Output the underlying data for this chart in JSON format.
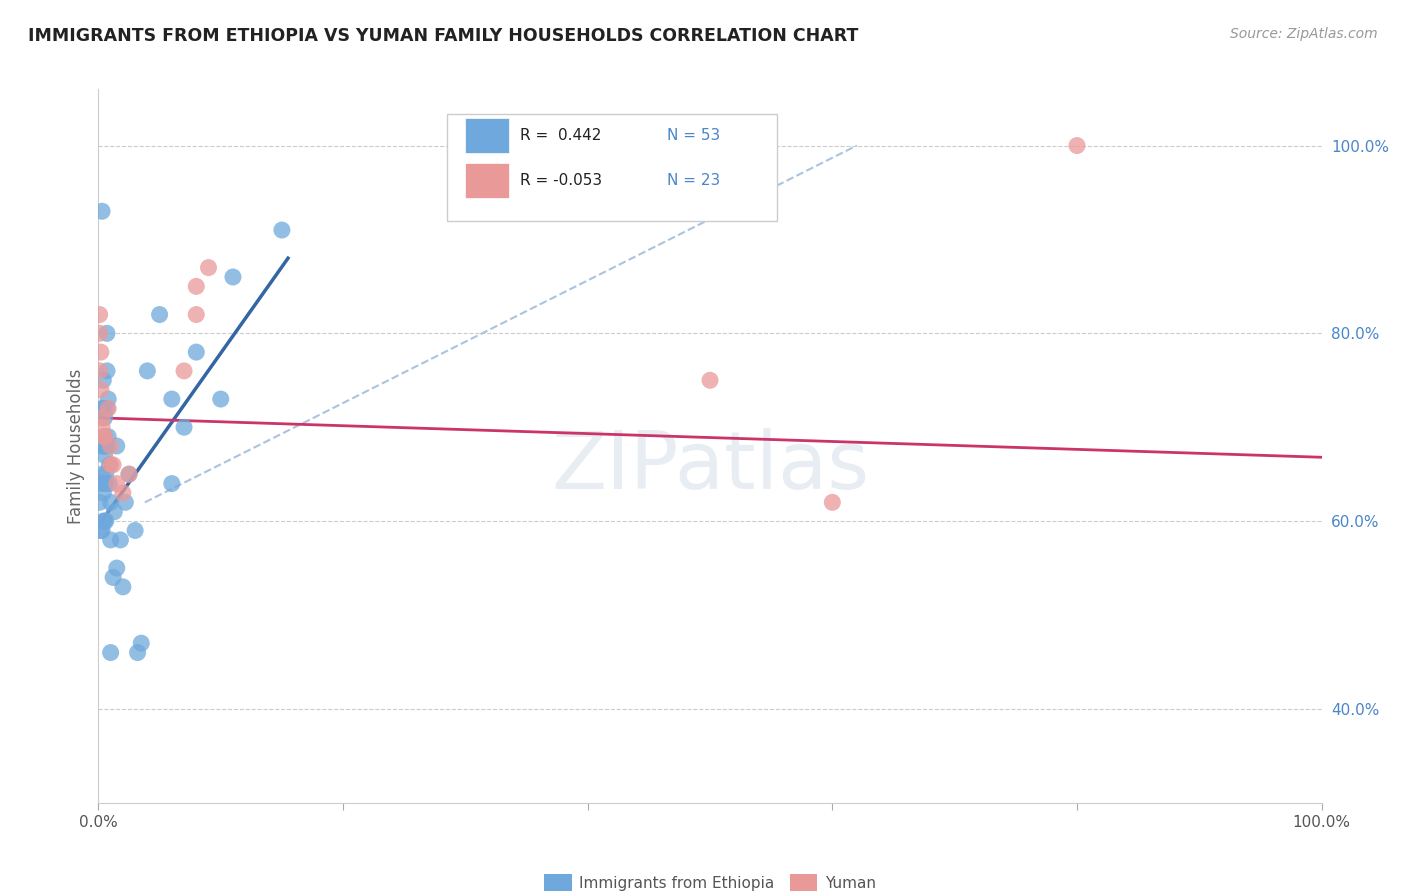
{
  "title": "IMMIGRANTS FROM ETHIOPIA VS YUMAN FAMILY HOUSEHOLDS CORRELATION CHART",
  "source": "Source: ZipAtlas.com",
  "ylabel": "Family Households",
  "xlim": [
    0.0,
    1.0
  ],
  "ylim": [
    0.3,
    1.06
  ],
  "x_ticks": [
    0.0,
    0.2,
    0.4,
    0.6,
    0.8,
    1.0
  ],
  "x_tick_labels": [
    "0.0%",
    "",
    "",
    "",
    "",
    "100.0%"
  ],
  "y_ticks_right": [
    0.4,
    0.6,
    0.8,
    1.0
  ],
  "y_tick_labels_right": [
    "40.0%",
    "60.0%",
    "80.0%",
    "100.0%"
  ],
  "blue_color": "#6fa8dc",
  "pink_color": "#ea9999",
  "blue_line_color": "#3465a4",
  "pink_line_color": "#cc3366",
  "dashed_line_color": "#aac4e0",
  "blue_scatter": [
    [
      0.001,
      0.62
    ],
    [
      0.002,
      0.59
    ],
    [
      0.002,
      0.64
    ],
    [
      0.003,
      0.65
    ],
    [
      0.003,
      0.68
    ],
    [
      0.003,
      0.72
    ],
    [
      0.003,
      0.59
    ],
    [
      0.004,
      0.63
    ],
    [
      0.004,
      0.6
    ],
    [
      0.004,
      0.68
    ],
    [
      0.004,
      0.72
    ],
    [
      0.004,
      0.75
    ],
    [
      0.005,
      0.64
    ],
    [
      0.005,
      0.6
    ],
    [
      0.005,
      0.69
    ],
    [
      0.005,
      0.67
    ],
    [
      0.005,
      0.71
    ],
    [
      0.006,
      0.68
    ],
    [
      0.006,
      0.65
    ],
    [
      0.006,
      0.64
    ],
    [
      0.006,
      0.6
    ],
    [
      0.007,
      0.68
    ],
    [
      0.007,
      0.72
    ],
    [
      0.007,
      0.76
    ],
    [
      0.007,
      0.8
    ],
    [
      0.008,
      0.69
    ],
    [
      0.008,
      0.73
    ],
    [
      0.009,
      0.64
    ],
    [
      0.009,
      0.66
    ],
    [
      0.01,
      0.62
    ],
    [
      0.01,
      0.58
    ],
    [
      0.012,
      0.54
    ],
    [
      0.013,
      0.61
    ],
    [
      0.015,
      0.68
    ],
    [
      0.015,
      0.55
    ],
    [
      0.018,
      0.58
    ],
    [
      0.02,
      0.53
    ],
    [
      0.022,
      0.62
    ],
    [
      0.025,
      0.65
    ],
    [
      0.03,
      0.59
    ],
    [
      0.032,
      0.46
    ],
    [
      0.035,
      0.47
    ],
    [
      0.04,
      0.76
    ],
    [
      0.05,
      0.82
    ],
    [
      0.06,
      0.73
    ],
    [
      0.07,
      0.7
    ],
    [
      0.08,
      0.78
    ],
    [
      0.1,
      0.73
    ],
    [
      0.11,
      0.86
    ],
    [
      0.15,
      0.91
    ],
    [
      0.003,
      0.93
    ],
    [
      0.06,
      0.64
    ],
    [
      0.01,
      0.46
    ]
  ],
  "pink_scatter": [
    [
      0.001,
      0.76
    ],
    [
      0.001,
      0.8
    ],
    [
      0.001,
      0.82
    ],
    [
      0.002,
      0.78
    ],
    [
      0.002,
      0.74
    ],
    [
      0.003,
      0.71
    ],
    [
      0.003,
      0.7
    ],
    [
      0.004,
      0.69
    ],
    [
      0.005,
      0.69
    ],
    [
      0.008,
      0.72
    ],
    [
      0.01,
      0.68
    ],
    [
      0.01,
      0.66
    ],
    [
      0.012,
      0.66
    ],
    [
      0.015,
      0.64
    ],
    [
      0.02,
      0.63
    ],
    [
      0.025,
      0.65
    ],
    [
      0.07,
      0.76
    ],
    [
      0.08,
      0.85
    ],
    [
      0.08,
      0.82
    ],
    [
      0.09,
      0.87
    ],
    [
      0.5,
      0.75
    ],
    [
      0.6,
      0.62
    ],
    [
      0.8,
      1.0
    ]
  ],
  "blue_line": [
    [
      0.0,
      0.595
    ],
    [
      0.155,
      0.88
    ]
  ],
  "pink_line": [
    [
      0.0,
      0.71
    ],
    [
      1.0,
      0.668
    ]
  ],
  "dashed_line": [
    [
      0.038,
      0.62
    ],
    [
      0.62,
      1.0
    ]
  ],
  "watermark": "ZIPatlas",
  "background_color": "#ffffff",
  "grid_color": "#cccccc"
}
